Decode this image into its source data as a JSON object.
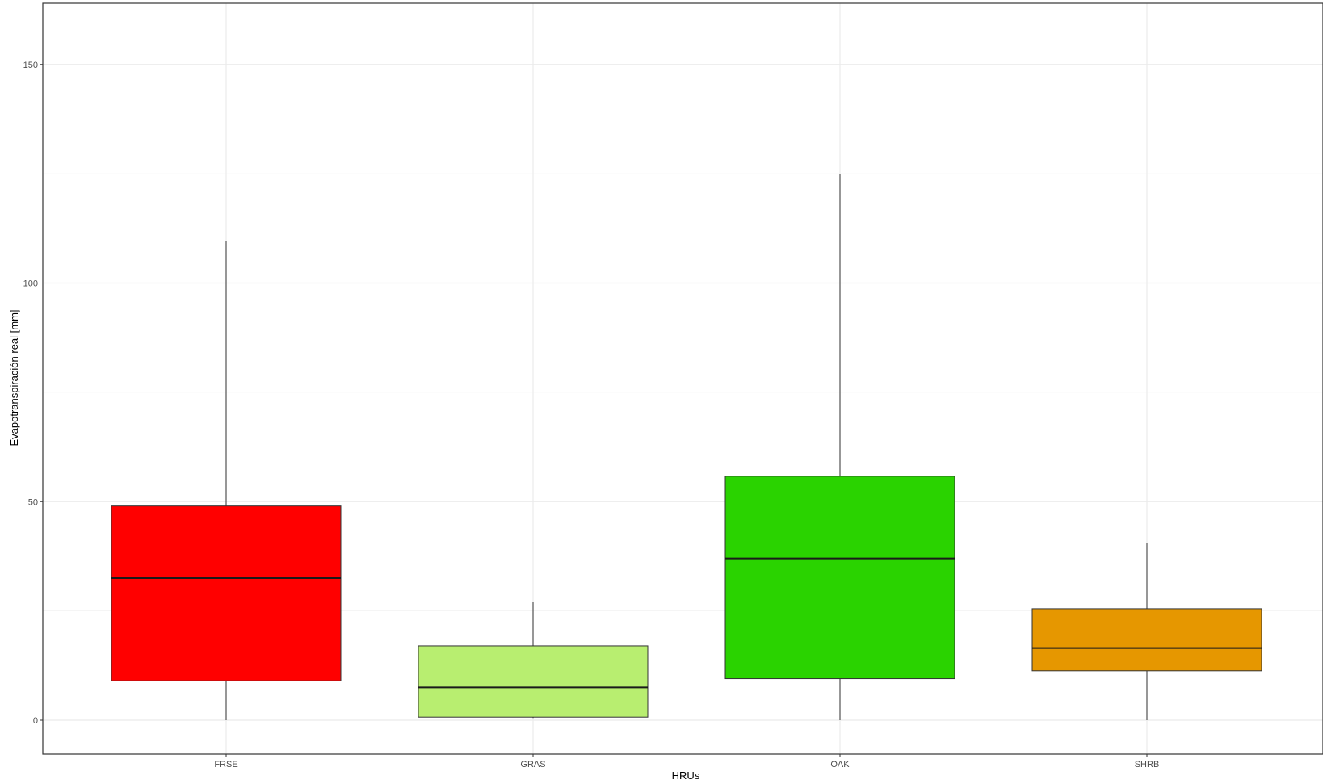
{
  "chart_data": {
    "type": "box",
    "xlabel": "HRUs",
    "ylabel": "Evapotranspiración real [mm]",
    "ylim": [
      -7.5,
      164
    ],
    "y_ticks": [
      0,
      50,
      100,
      150
    ],
    "y_tick_labels": [
      "0",
      "50",
      "100",
      "150"
    ],
    "y_minor_ticks": [
      25,
      75,
      125
    ],
    "grid": true,
    "legend": "none",
    "categories": [
      "FRSE",
      "GRAS",
      "OAK",
      "SHRB"
    ],
    "boxes": [
      {
        "category": "FRSE",
        "min": 0.0,
        "q1": 9.0,
        "median": 32.5,
        "q3": 49.0,
        "max": 109.5,
        "fill": "#ff0000"
      },
      {
        "category": "GRAS",
        "min": 0.5,
        "q1": 0.7,
        "median": 7.5,
        "q3": 17.0,
        "max": 27.0,
        "fill": "#b8ee70"
      },
      {
        "category": "OAK",
        "min": 0.0,
        "q1": 9.5,
        "median": 37.0,
        "q3": 55.8,
        "max": 125.0,
        "fill": "#2ad300"
      },
      {
        "category": "SHRB",
        "min": 0.0,
        "q1": 11.3,
        "median": 16.5,
        "q3": 25.5,
        "max": 40.5,
        "fill": "#e69700"
      }
    ]
  }
}
